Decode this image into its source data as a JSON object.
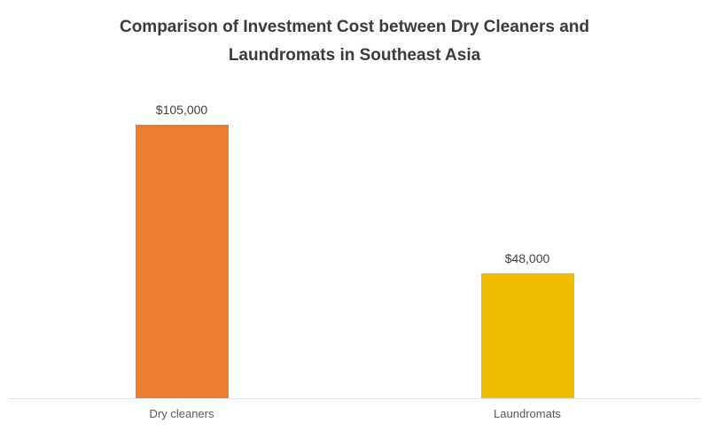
{
  "chart_data": {
    "type": "bar",
    "title": "Comparison of Investment Cost between Dry Cleaners and Laundromats in Southeast Asia",
    "categories": [
      "Dry cleaners",
      "Laundromats"
    ],
    "values": [
      105000,
      48000
    ],
    "value_labels": [
      "$105,000",
      "$48,000"
    ],
    "bar_colors": [
      "#ED7D31",
      "#F0BC00"
    ],
    "xlabel": "",
    "ylabel": "",
    "ylim": [
      0,
      115000
    ],
    "grid": false,
    "legend": false,
    "axis_line_color": "#e2e2e2",
    "title_color": "#3b3b3b",
    "label_color": "#595959"
  }
}
